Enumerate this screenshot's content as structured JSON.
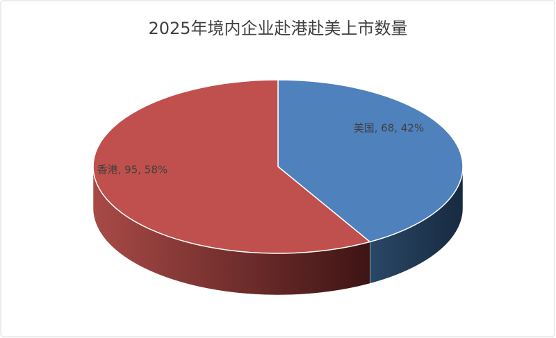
{
  "chart_data": {
    "type": "pie",
    "title": "2025年境内企业赴港赴美上市数量",
    "categories": [
      "美国",
      "香港"
    ],
    "values": [
      68,
      95
    ],
    "value_labels": [
      "美国, 68, 42%",
      "香港, 95, 58%"
    ],
    "colors": [
      "#4f81bd",
      "#c0504d"
    ]
  }
}
